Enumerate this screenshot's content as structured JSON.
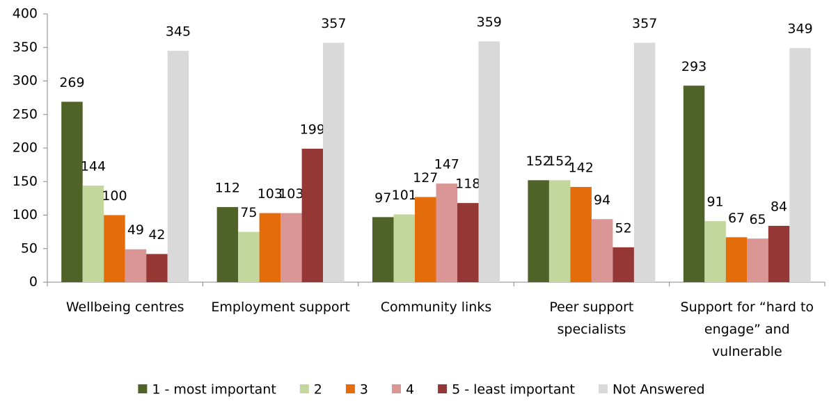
{
  "chart_data": {
    "type": "bar",
    "categories": [
      "Wellbeing centres",
      "Employment support",
      "Community links",
      "Peer support specialists",
      "Support for “hard to engage” and vulnerable"
    ],
    "series": [
      {
        "name": "1 - most important",
        "color": "#4f6228",
        "values": [
          269,
          112,
          97,
          152,
          293
        ]
      },
      {
        "name": "2",
        "color": "#c3d69b",
        "values": [
          144,
          75,
          101,
          152,
          91
        ]
      },
      {
        "name": "3",
        "color": "#e46c0a",
        "values": [
          100,
          103,
          127,
          142,
          67
        ]
      },
      {
        "name": "4",
        "color": "#d99694",
        "values": [
          49,
          103,
          147,
          94,
          65
        ]
      },
      {
        "name": "5 - least important",
        "color": "#953735",
        "values": [
          42,
          199,
          118,
          52,
          84
        ]
      },
      {
        "name": "Not Answered",
        "color": "#d9d9d9",
        "values": [
          345,
          357,
          359,
          357,
          349
        ]
      }
    ],
    "ylim": [
      0,
      400
    ],
    "yticks": [
      0,
      50,
      100,
      150,
      200,
      250,
      300,
      350,
      400
    ],
    "grid": false,
    "legend": "bottom"
  }
}
